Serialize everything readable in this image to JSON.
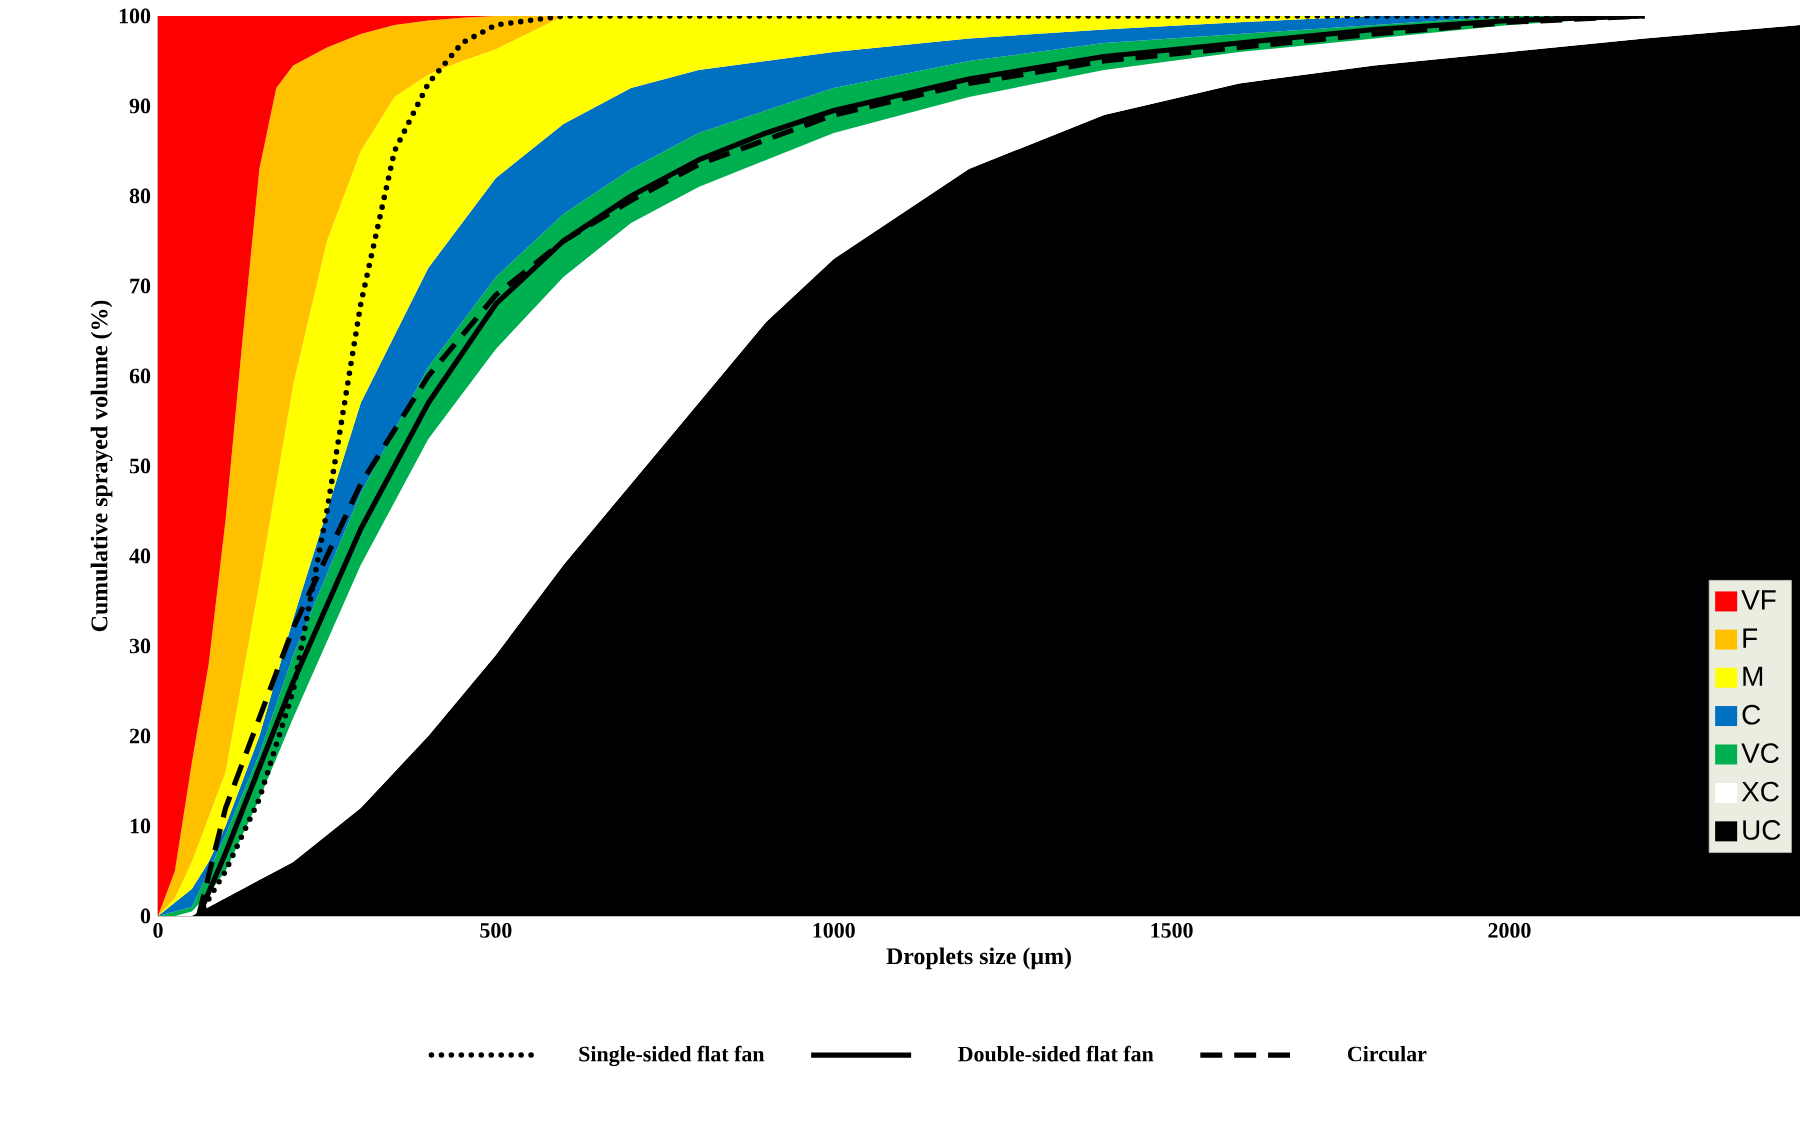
{
  "chart_data": {
    "type": "area",
    "stacked": true,
    "xlabel": "Droplets size (µm)",
    "ylabel": "Cumulative sprayed volume (%)",
    "xlim": [
      0,
      2430
    ],
    "ylim": [
      0,
      100
    ],
    "xticks": [
      0,
      500,
      1000,
      1500,
      2000
    ],
    "yticks": [
      0,
      10,
      20,
      30,
      40,
      50,
      60,
      70,
      80,
      90,
      100
    ],
    "legend": "right",
    "x": [
      0,
      25,
      50,
      75,
      100,
      125,
      150,
      175,
      200,
      250,
      300,
      350,
      400,
      450,
      500,
      600,
      700,
      800,
      900,
      1000,
      1200,
      1400,
      1600,
      1800,
      2000,
      2200,
      2430
    ],
    "series": [
      {
        "name": "UC",
        "color": "#000000",
        "values": [
          0,
          0,
          0,
          1,
          2,
          3,
          4,
          5,
          6,
          9,
          12,
          16,
          20,
          24.5,
          29,
          39,
          48,
          57,
          66,
          73,
          83,
          89,
          92.5,
          94.5,
          96,
          97.5,
          99
        ]
      },
      {
        "name": "XC",
        "color": "#ffffff",
        "values": [
          0,
          0,
          0.5,
          1.5,
          3,
          6,
          9,
          12.5,
          16,
          21.5,
          27,
          30,
          33,
          33.5,
          34,
          32,
          29,
          24,
          18,
          14,
          8,
          5,
          3.5,
          3,
          3,
          2.5,
          1
        ]
      },
      {
        "name": "VC",
        "color": "#00b050",
        "values": [
          0,
          0.5,
          0.5,
          2.5,
          4,
          4.5,
          5,
          6,
          7,
          7.5,
          8,
          8,
          8,
          8,
          8,
          7,
          6,
          6,
          5.5,
          5,
          4,
          3,
          2,
          1.5,
          1,
          0,
          null
        ]
      },
      {
        "name": "C",
        "color": "#0070c0",
        "values": [
          0,
          1,
          2,
          1,
          1,
          1.5,
          2,
          3,
          4,
          7,
          10,
          10.5,
          11,
          11,
          11,
          10,
          9,
          7,
          5.5,
          4,
          2.5,
          1.5,
          1.3,
          1,
          0,
          null,
          null
        ]
      },
      {
        "name": "M",
        "color": "#ffff00",
        "values": [
          0,
          0.5,
          3,
          5,
          6,
          11.5,
          17,
          21.5,
          26,
          30,
          28,
          26.5,
          21.5,
          18,
          14.3,
          12,
          8,
          6,
          5,
          4,
          2.5,
          1.5,
          0.7,
          0,
          null,
          null,
          null
        ]
      },
      {
        "name": "F",
        "color": "#ffc000",
        "values": [
          0,
          3,
          11,
          17,
          28,
          37.5,
          46,
          44,
          35.5,
          21.5,
          13,
          8,
          6,
          4.8,
          3.7,
          0,
          null,
          null,
          null,
          null,
          null,
          null,
          null,
          null,
          null,
          null,
          null
        ]
      },
      {
        "name": "VF",
        "color": "#ff0000",
        "values": [
          100,
          95,
          83,
          72,
          56,
          36,
          17,
          8,
          5.5,
          3.5,
          2,
          1,
          0.5,
          0.2,
          0,
          null,
          null,
          null,
          null,
          null,
          null,
          null,
          null,
          null,
          null,
          null,
          null
        ]
      },
      {
        "name": "Single-sided flat fan",
        "type": "line",
        "line_style": "dotted",
        "color": "#000000",
        "x": [
          60,
          100,
          150,
          200,
          250,
          300,
          350,
          400,
          450,
          500,
          600,
          800,
          1200,
          1600,
          2200
        ],
        "values": [
          0,
          5,
          13,
          25,
          45,
          68,
          85,
          92.5,
          97,
          99,
          100,
          100,
          100,
          100,
          100
        ]
      },
      {
        "name": "Double-sided flat fan",
        "type": "line",
        "line_style": "solid",
        "color": "#000000",
        "x": [
          60,
          100,
          200,
          300,
          400,
          500,
          600,
          700,
          800,
          900,
          1000,
          1200,
          1400,
          1600,
          1800,
          2000,
          2200
        ],
        "values": [
          0,
          7,
          26,
          43,
          57,
          68,
          75,
          80,
          84,
          87,
          89.5,
          93,
          95.5,
          97,
          98.5,
          99.5,
          100
        ]
      },
      {
        "name": "Circular",
        "type": "line",
        "line_style": "dashed",
        "color": "#000000",
        "x": [
          60,
          100,
          200,
          300,
          400,
          500,
          600,
          700,
          800,
          1000,
          1200,
          1400,
          1600,
          1800,
          2000,
          2200
        ],
        "values": [
          0,
          12,
          32,
          48,
          60,
          69,
          75,
          79.5,
          83.5,
          89,
          92.5,
          95,
          96.5,
          98,
          99.3,
          100
        ]
      }
    ]
  }
}
